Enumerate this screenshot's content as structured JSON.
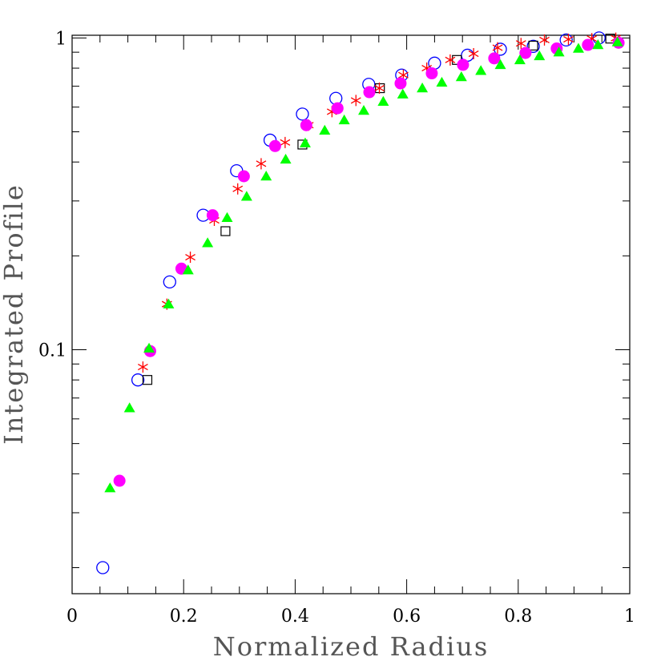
{
  "chart_data": {
    "type": "scatter",
    "title": "",
    "xlabel": "Normalized Radius",
    "ylabel": "Integrated Profile",
    "xlim": [
      0,
      1
    ],
    "ylim": [
      0.0165,
      1.02
    ],
    "yscale": "log",
    "grid": false,
    "x_ticks": [
      "0",
      "0.2",
      "0.4",
      "0.6",
      "0.8",
      "1"
    ],
    "y_ticks": [
      "0.1",
      "1"
    ],
    "series": [
      {
        "marker": "open-circle",
        "color": "#0000ff",
        "x": [
          0.055,
          0.118,
          0.175,
          0.235,
          0.295,
          0.355,
          0.413,
          0.473,
          0.532,
          0.591,
          0.65,
          0.709,
          0.768,
          0.827,
          0.886,
          0.945
        ],
        "y": [
          0.02,
          0.08,
          0.165,
          0.27,
          0.375,
          0.47,
          0.57,
          0.64,
          0.71,
          0.76,
          0.83,
          0.88,
          0.92,
          0.94,
          0.985,
          1.0
        ]
      },
      {
        "marker": "open-square",
        "color": "#000000",
        "x": [
          0.135,
          0.275,
          0.413,
          0.552,
          0.69,
          0.827,
          0.965
        ],
        "y": [
          0.08,
          0.24,
          0.455,
          0.69,
          0.85,
          0.945,
          0.995
        ]
      },
      {
        "marker": "asterisk",
        "color": "#ff0000",
        "x": [
          0.085,
          0.127,
          0.17,
          0.212,
          0.255,
          0.297,
          0.339,
          0.382,
          0.424,
          0.466,
          0.509,
          0.551,
          0.594,
          0.636,
          0.678,
          0.72,
          0.763,
          0.805,
          0.847,
          0.89,
          0.932,
          0.975
        ],
        "y": [
          0.038,
          0.088,
          0.14,
          0.198,
          0.26,
          0.328,
          0.395,
          0.462,
          0.525,
          0.58,
          0.63,
          0.69,
          0.76,
          0.8,
          0.85,
          0.89,
          0.93,
          0.96,
          0.985,
          0.99,
          0.995,
          0.998
        ]
      },
      {
        "marker": "filled-circle",
        "color": "#ff00ff",
        "x": [
          0.085,
          0.14,
          0.196,
          0.252,
          0.308,
          0.364,
          0.42,
          0.476,
          0.533,
          0.589,
          0.645,
          0.701,
          0.757,
          0.813,
          0.869,
          0.925,
          0.98
        ],
        "y": [
          0.038,
          0.099,
          0.182,
          0.27,
          0.36,
          0.45,
          0.525,
          0.595,
          0.67,
          0.715,
          0.77,
          0.82,
          0.86,
          0.895,
          0.925,
          0.95,
          0.965
        ]
      },
      {
        "marker": "filled-triangle",
        "color": "#00ff00",
        "x": [
          0.068,
          0.103,
          0.138,
          0.173,
          0.208,
          0.243,
          0.278,
          0.313,
          0.348,
          0.383,
          0.418,
          0.453,
          0.488,
          0.523,
          0.558,
          0.593,
          0.628,
          0.663,
          0.698,
          0.733,
          0.768,
          0.803,
          0.838,
          0.873,
          0.908,
          0.943,
          0.978
        ],
        "y": [
          0.036,
          0.065,
          0.101,
          0.14,
          0.18,
          0.22,
          0.265,
          0.31,
          0.36,
          0.408,
          0.46,
          0.505,
          0.545,
          0.585,
          0.625,
          0.66,
          0.69,
          0.72,
          0.75,
          0.785,
          0.82,
          0.85,
          0.875,
          0.9,
          0.925,
          0.95,
          0.97
        ]
      }
    ]
  }
}
